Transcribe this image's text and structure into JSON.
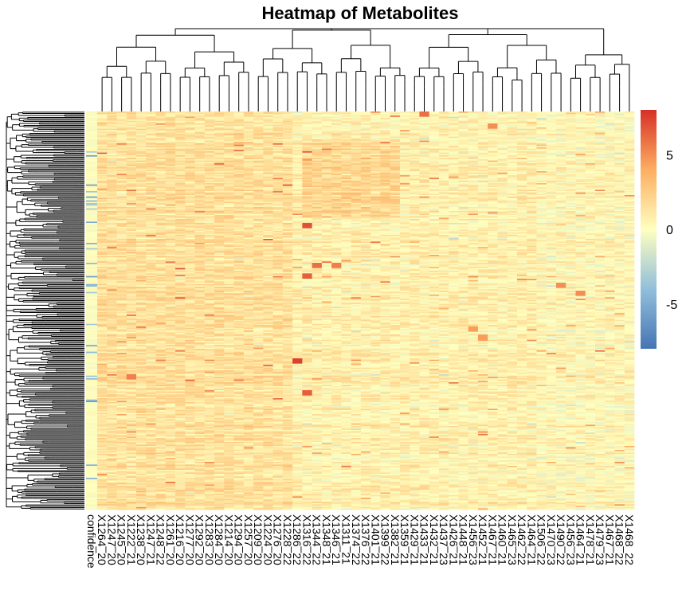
{
  "chart_data": {
    "type": "heatmap",
    "title": "Heatmap of Metabolites",
    "annotation_column_label": "confidence",
    "column_labels": [
      "X1264_20",
      "X1247_20",
      "X1245_20",
      "X1222_21",
      "X1238_20",
      "X1247_21",
      "X1248_22",
      "X1261_20",
      "X1216_20",
      "X1277_20",
      "X1292_20",
      "X1283_20",
      "X1284_20",
      "X1214_20",
      "X1294_20",
      "X1257_20",
      "X1209_20",
      "X1224_20",
      "X1276_20",
      "X1228_22",
      "X1286_22",
      "X1316_22",
      "X1344_22",
      "X1348_21",
      "X1346_21",
      "X1311_21",
      "X1374_22",
      "X1376_22",
      "X1401_21",
      "X1399_22",
      "X1382_21",
      "X1359_21",
      "X1429_21",
      "X1433_21",
      "X1432_21",
      "X1437_23",
      "X1426_21",
      "X1448_21",
      "X1456_23",
      "X1452_21",
      "X1467_21",
      "X1460_21",
      "X1465_23",
      "X1462_22",
      "X1464_21",
      "X1506_22",
      "X1470_23",
      "X1490_22",
      "X1456_23",
      "X1464_21",
      "X1478_21",
      "X1479_23",
      "X1467_21",
      "X1468_22",
      "X1468_22"
    ],
    "value_range": [
      -8,
      8
    ],
    "color_scale": [
      {
        "value": -8,
        "color": "#4575b4"
      },
      {
        "value": -4,
        "color": "#91bfdb"
      },
      {
        "value": 0,
        "color": "#ffffbf"
      },
      {
        "value": 4,
        "color": "#fdae61"
      },
      {
        "value": 8,
        "color": "#d73027"
      }
    ],
    "legend_ticks": [
      5,
      0,
      -5
    ],
    "legend_placement": "right",
    "row_count": 300,
    "row_dendrogram": true,
    "column_dendrogram": true,
    "highlights": [
      {
        "row_fraction": 0.28,
        "column": 21,
        "value": 7
      },
      {
        "row_fraction": 0.41,
        "column": 21,
        "value": 6.5
      },
      {
        "row_fraction": 0.38,
        "column": 22,
        "value": 6
      },
      {
        "row_fraction": 0.38,
        "column": 24,
        "value": 5.5
      },
      {
        "row_fraction": 0.62,
        "column": 20,
        "value": 7.5
      },
      {
        "row_fraction": 0.7,
        "column": 21,
        "value": 6.5
      },
      {
        "row_fraction": 0.66,
        "column": 3,
        "value": 5.5
      },
      {
        "row_fraction": 0.43,
        "column": 47,
        "value": 5
      },
      {
        "row_fraction": 0.45,
        "column": 49,
        "value": 5
      },
      {
        "row_fraction": 0.54,
        "column": 38,
        "value": 4.5
      },
      {
        "row_fraction": 0.56,
        "column": 39,
        "value": 4.5
      },
      {
        "row_fraction": 0.0,
        "column": 33,
        "value": 6
      },
      {
        "row_fraction": 0.03,
        "column": 40,
        "value": 5
      }
    ]
  }
}
